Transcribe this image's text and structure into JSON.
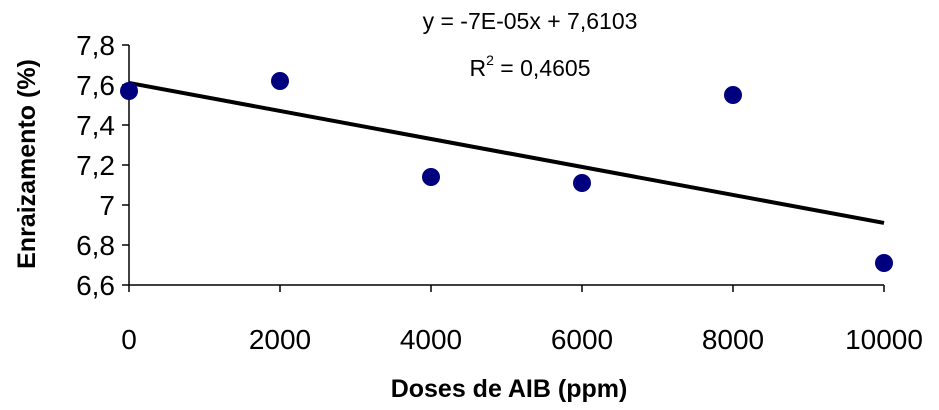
{
  "chart_data": {
    "type": "scatter",
    "xlabel": "Doses de AIB (ppm)",
    "ylabel": "Enraizamento (%)",
    "xlim": [
      0,
      10000
    ],
    "ylim": [
      6.6,
      7.8
    ],
    "x_ticks": [
      "0",
      "2000",
      "4000",
      "6000",
      "8000",
      "10000"
    ],
    "y_ticks": [
      "6,6",
      "6,8",
      "7",
      "7,2",
      "7,4",
      "7,6",
      "7,8"
    ],
    "x_tick_values": [
      0,
      2000,
      4000,
      6000,
      8000,
      10000
    ],
    "y_tick_values": [
      6.6,
      6.8,
      7.0,
      7.2,
      7.4,
      7.6,
      7.8
    ],
    "grid": false,
    "legend": false,
    "points": [
      {
        "x": 0,
        "y": 7.57
      },
      {
        "x": 2000,
        "y": 7.62
      },
      {
        "x": 4000,
        "y": 7.14
      },
      {
        "x": 6000,
        "y": 7.11
      },
      {
        "x": 8000,
        "y": 7.55
      },
      {
        "x": 10000,
        "y": 6.71
      }
    ],
    "trendline": {
      "slope": -7e-05,
      "intercept": 7.6103,
      "equation": "y = -7E-05x + 7,6103",
      "r2_prefix": "R",
      "r2_exp": "2",
      "r2_value": " = 0,4605"
    },
    "colors": {
      "marker": "#00007f",
      "line": "#000000",
      "axis": "#000000"
    }
  }
}
